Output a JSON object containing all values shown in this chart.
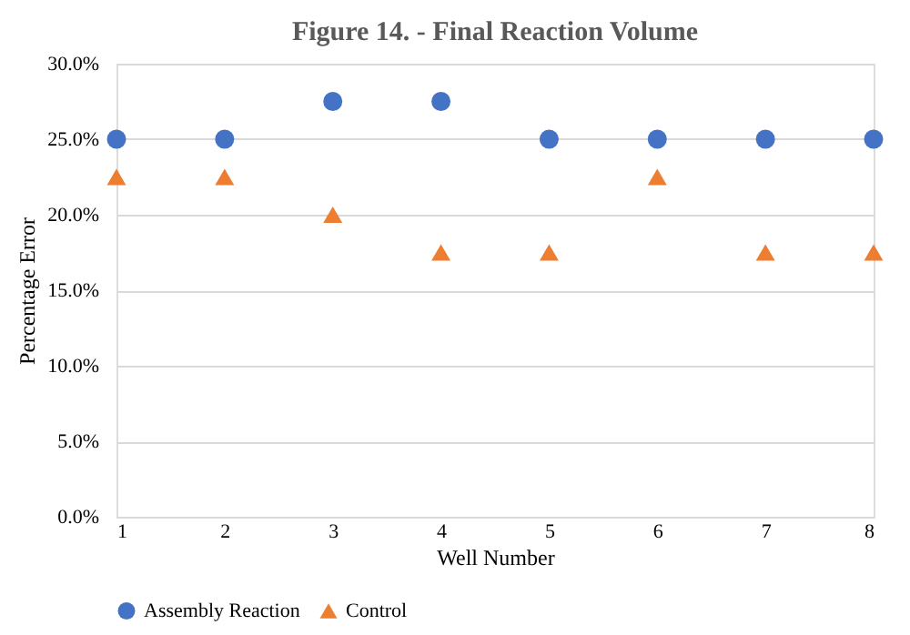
{
  "chart_data": {
    "type": "scatter",
    "title": "Figure 14. - Final Reaction Volume",
    "xlabel": "Well Number",
    "ylabel": "Percentage Error",
    "x": [
      1,
      2,
      3,
      4,
      5,
      6,
      7,
      8
    ],
    "series": [
      {
        "name": "Assembly Reaction",
        "color": "#4472c4",
        "marker": "circle",
        "values": [
          25,
          25,
          27.5,
          27.5,
          25,
          25,
          25,
          25
        ]
      },
      {
        "name": "Control",
        "color": "#ed7d31",
        "marker": "triangle",
        "values": [
          22.5,
          22.5,
          20,
          17.5,
          17.5,
          22.5,
          17.5,
          17.5
        ]
      }
    ],
    "xlim": [
      1,
      8
    ],
    "xticks": [
      1,
      2,
      3,
      4,
      5,
      6,
      7,
      8
    ],
    "ylim": [
      0,
      30
    ],
    "yticks": [
      {
        "value": 0,
        "label": "0.0%"
      },
      {
        "value": 5,
        "label": "5.0%"
      },
      {
        "value": 10,
        "label": "10.0%"
      },
      {
        "value": 15,
        "label": "15.0%"
      },
      {
        "value": 20,
        "label": "20.0%"
      },
      {
        "value": 25,
        "label": "25.0%"
      },
      {
        "value": 30,
        "label": "30.0%"
      }
    ],
    "grid": "y",
    "legend": "bottom"
  }
}
